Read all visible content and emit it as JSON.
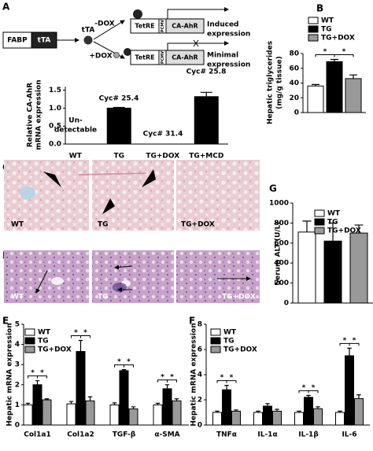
{
  "panel_labels": [
    "A",
    "B",
    "C",
    "D",
    "E",
    "F",
    "G"
  ],
  "diagram": {
    "promoter": "FABP",
    "transactivator": "tTA",
    "minus_dox": "-DOX",
    "plus_dox": "+DOX",
    "response_element": "TetRE",
    "minimal_promoter": "PCMV",
    "transgene": "CA-AhR",
    "induced": [
      "Induced",
      "expression"
    ],
    "minimal": [
      "Minimal",
      "expression"
    ]
  },
  "histology": {
    "labels": [
      "WT",
      "TG",
      "TG+DOX"
    ]
  },
  "chart_data": [
    {
      "type": "bar",
      "ylabel": [
        "Relative CA-AhR",
        "mRNA expression"
      ],
      "categories": [
        "WT",
        "TG",
        "TG+DOX",
        "TG+MCD"
      ],
      "values": [
        null,
        1.0,
        0,
        1.32
      ],
      "errors": [
        null,
        0.02,
        null,
        0.12
      ],
      "color": "#000000",
      "ylim": [
        0,
        1.6
      ],
      "yticks": [
        {
          "value": 0,
          "label": "0.0"
        },
        {
          "value": 0.5,
          "label": "0.5"
        },
        {
          "value": 1.0,
          "label": "1.0"
        },
        {
          "value": 1.5,
          "label": "1.5"
        }
      ],
      "annotations": [
        [
          "Un-",
          "detectable"
        ],
        "Cyc# 25.4",
        "Cyc# 31.4",
        "Cyc# 25.8"
      ]
    },
    {
      "type": "bar",
      "ylabel": [
        "Hepatic triglycerides",
        "(mg/g tissue)"
      ],
      "categories": [
        null
      ],
      "series": [
        {
          "name": "WT",
          "color": "#ffffff",
          "values": [
            36
          ],
          "errors": [
            2
          ]
        },
        {
          "name": "TG",
          "color": "#000000",
          "values": [
            69
          ],
          "errors": [
            3
          ]
        },
        {
          "name": "TG+DOX",
          "color": "#999999",
          "values": [
            46
          ],
          "errors": [
            5
          ]
        }
      ],
      "ylim": [
        0,
        80
      ],
      "yticks": [
        0,
        20,
        40,
        60,
        80
      ],
      "significance": "*"
    },
    {
      "type": "bar",
      "ylabel": [
        "Serum ALT (U/L)"
      ],
      "categories": [
        null
      ],
      "series": [
        {
          "name": "WT",
          "color": "#ffffff",
          "values": [
            710
          ],
          "errors": [
            110
          ]
        },
        {
          "name": "TG",
          "color": "#000000",
          "values": [
            620
          ],
          "errors": [
            180
          ]
        },
        {
          "name": "TG+DOX",
          "color": "#999999",
          "values": [
            700
          ],
          "errors": [
            80
          ]
        }
      ],
      "ylim": [
        0,
        1000
      ],
      "yticks": [
        0,
        200,
        400,
        600,
        800,
        1000
      ]
    },
    {
      "type": "bar",
      "ylabel": [
        "Hepatic mRNA expression"
      ],
      "categories": [
        "Col1a1",
        "Col1a2",
        "TGF-β",
        "α-SMA"
      ],
      "series": [
        {
          "name": "WT",
          "color": "#ffffff",
          "values": [
            1.0,
            1.05,
            1.0,
            1.0
          ],
          "errors": [
            0.08,
            0.12,
            0.1,
            0.08
          ]
        },
        {
          "name": "TG",
          "color": "#000000",
          "values": [
            2.0,
            3.65,
            2.7,
            1.8
          ],
          "errors": [
            0.2,
            0.55,
            0.05,
            0.2
          ]
        },
        {
          "name": "TG+DOX",
          "color": "#999999",
          "values": [
            1.25,
            1.2,
            0.8,
            1.2
          ],
          "errors": [
            0.05,
            0.2,
            0.1,
            0.1
          ]
        }
      ],
      "ylim": [
        0,
        5
      ],
      "yticks": [
        0,
        1,
        2,
        3,
        4,
        5
      ],
      "significance": "*"
    },
    {
      "type": "bar",
      "ylabel": [
        "Hepatic mRNA expression"
      ],
      "categories": [
        "TNFα",
        "IL-1α",
        "IL-1β",
        "IL-6"
      ],
      "series": [
        {
          "name": "WT",
          "color": "#ffffff",
          "values": [
            1.0,
            1.0,
            1.0,
            1.0
          ],
          "errors": [
            0.1,
            0.1,
            0.1,
            0.1
          ]
        },
        {
          "name": "TG",
          "color": "#000000",
          "values": [
            2.8,
            1.5,
            2.2,
            5.5
          ],
          "errors": [
            0.35,
            0.2,
            0.15,
            0.6
          ]
        },
        {
          "name": "TG+DOX",
          "color": "#999999",
          "values": [
            1.1,
            1.1,
            1.3,
            2.1
          ],
          "errors": [
            0.1,
            0.15,
            0.15,
            0.3
          ]
        }
      ],
      "ylim": [
        0,
        8
      ],
      "yticks": [
        0,
        2,
        4,
        6,
        8
      ],
      "significance": "*"
    }
  ]
}
